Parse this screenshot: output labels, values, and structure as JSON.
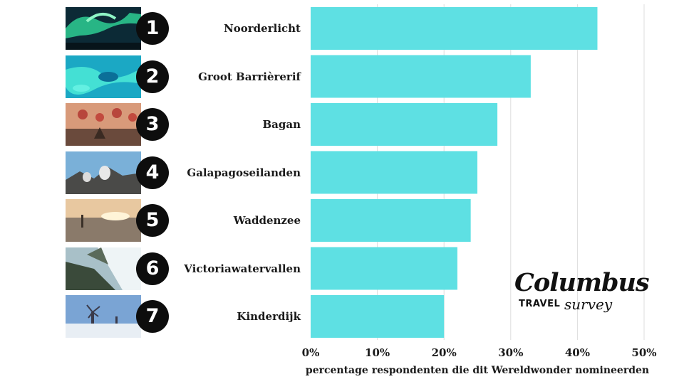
{
  "chart_data": {
    "type": "bar",
    "orientation": "horizontal",
    "categories": [
      "Noorderlicht",
      "Groot Barrièrerif",
      "Bagan",
      "Galapagoseilanden",
      "Waddenzee",
      "Victoriawatervallen",
      "Kinderdijk"
    ],
    "ranks": [
      "1",
      "2",
      "3",
      "4",
      "5",
      "6",
      "7"
    ],
    "values": [
      43,
      33,
      28,
      25,
      24,
      22,
      20
    ],
    "value_unit": "%",
    "xlim": [
      0,
      50
    ],
    "xticks": [
      0,
      10,
      20,
      30,
      40,
      50
    ],
    "xtick_labels": [
      "0%",
      "10%",
      "20%",
      "30%",
      "40%",
      "50%"
    ],
    "xlabel": "percentage respondenten die dit Wereldwonder nomineerden",
    "title": "",
    "ylabel": "",
    "grid": "vertical",
    "bar_color": "#5ee0e3",
    "grid_color": "#dddddd"
  },
  "thumbnails": [
    "aurora-photo",
    "reef-photo",
    "balloons-photo",
    "iguanas-photo",
    "mudflat-photo",
    "waterfall-photo",
    "windmills-photo"
  ],
  "logo": {
    "main": "Columbus",
    "travel": "TRAVEL",
    "survey": "survey"
  }
}
